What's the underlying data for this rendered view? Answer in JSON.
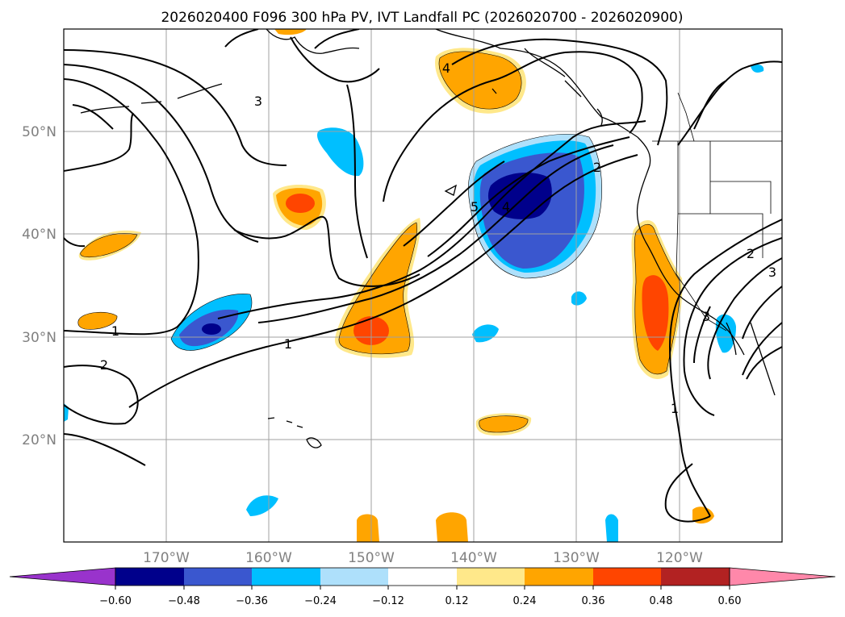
{
  "title": "2026020400 F096 300 hPa PV, IVT Landfall PC (2026020700 - 2026020900)",
  "map": {
    "lon_range": [
      -180,
      -110
    ],
    "lat_range": [
      10,
      60
    ],
    "lon_ticks": [
      {
        "value": -170,
        "label": "170°W"
      },
      {
        "value": -160,
        "label": "160°W"
      },
      {
        "value": -150,
        "label": "150°W"
      },
      {
        "value": -140,
        "label": "140°W"
      },
      {
        "value": -130,
        "label": "130°W"
      },
      {
        "value": -120,
        "label": "120°W"
      }
    ],
    "lat_ticks": [
      {
        "value": 50,
        "label": "50°N"
      },
      {
        "value": 40,
        "label": "40°N"
      },
      {
        "value": 30,
        "label": "30°N"
      },
      {
        "value": 20,
        "label": "20°N"
      }
    ],
    "contour_labels": [
      "1",
      "1",
      "1",
      "2",
      "2",
      "2",
      "3",
      "3",
      "3",
      "4",
      "4",
      "5"
    ]
  },
  "colorbar": {
    "tick_labels": [
      "−0.60",
      "−0.48",
      "−0.36",
      "−0.24",
      "−0.12",
      "0.12",
      "0.24",
      "0.36",
      "0.48",
      "0.60"
    ],
    "tick_values": [
      -0.6,
      -0.48,
      -0.36,
      -0.24,
      -0.12,
      0.12,
      0.24,
      0.36,
      0.48,
      0.6
    ],
    "colors": {
      "under": "#9933cc",
      "b1": "#00008b",
      "b2": "#3a57cf",
      "b3": "#00bfff",
      "b4": "#aee0fb",
      "b5": "#ffffff",
      "b6": "#ffe88a",
      "b7": "#ffa500",
      "b8": "#ff4500",
      "b9": "#b22222",
      "over": "#ff88aa"
    }
  }
}
